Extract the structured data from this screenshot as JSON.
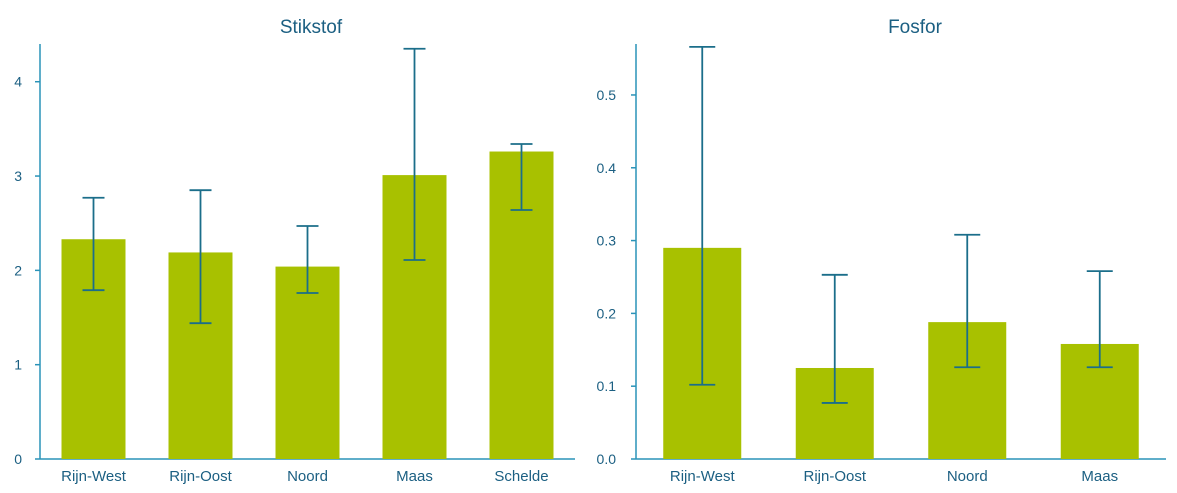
{
  "colors": {
    "bar": "#a8c100",
    "axis": "#2a93b8",
    "errorbar": "#1b6e8a",
    "text": "#1b5f82"
  },
  "chart_data": [
    {
      "type": "bar",
      "title": "Stikstof",
      "xlabel": "",
      "ylabel": "",
      "categories": [
        "Rijn-West",
        "Rijn-Oost",
        "Noord",
        "Maas",
        "Schelde"
      ],
      "values": [
        2.33,
        2.19,
        2.04,
        3.01,
        3.26
      ],
      "error_low": [
        1.79,
        1.44,
        1.76,
        2.11,
        2.64
      ],
      "error_high": [
        2.77,
        2.85,
        2.47,
        4.35,
        3.34
      ],
      "ylim": [
        0,
        4.4
      ],
      "yticks": [
        0,
        1,
        2,
        3,
        4
      ],
      "ytick_labels": [
        "0",
        "1",
        "2",
        "3",
        "4"
      ],
      "grid": false,
      "legend": "none"
    },
    {
      "type": "bar",
      "title": "Fosfor",
      "xlabel": "",
      "ylabel": "",
      "categories": [
        "Rijn-West",
        "Rijn-Oost",
        "Noord",
        "Maas"
      ],
      "values": [
        0.29,
        0.125,
        0.188,
        0.158
      ],
      "error_low": [
        0.102,
        0.077,
        0.126,
        0.126
      ],
      "error_high": [
        0.566,
        0.253,
        0.308,
        0.258
      ],
      "ylim": [
        0,
        0.57
      ],
      "yticks": [
        0,
        0.1,
        0.2,
        0.3,
        0.4,
        0.5
      ],
      "ytick_labels": [
        "0.0",
        "0.1",
        "0.2",
        "0.3",
        "0.4",
        "0.5"
      ],
      "grid": false,
      "legend": "none"
    }
  ]
}
